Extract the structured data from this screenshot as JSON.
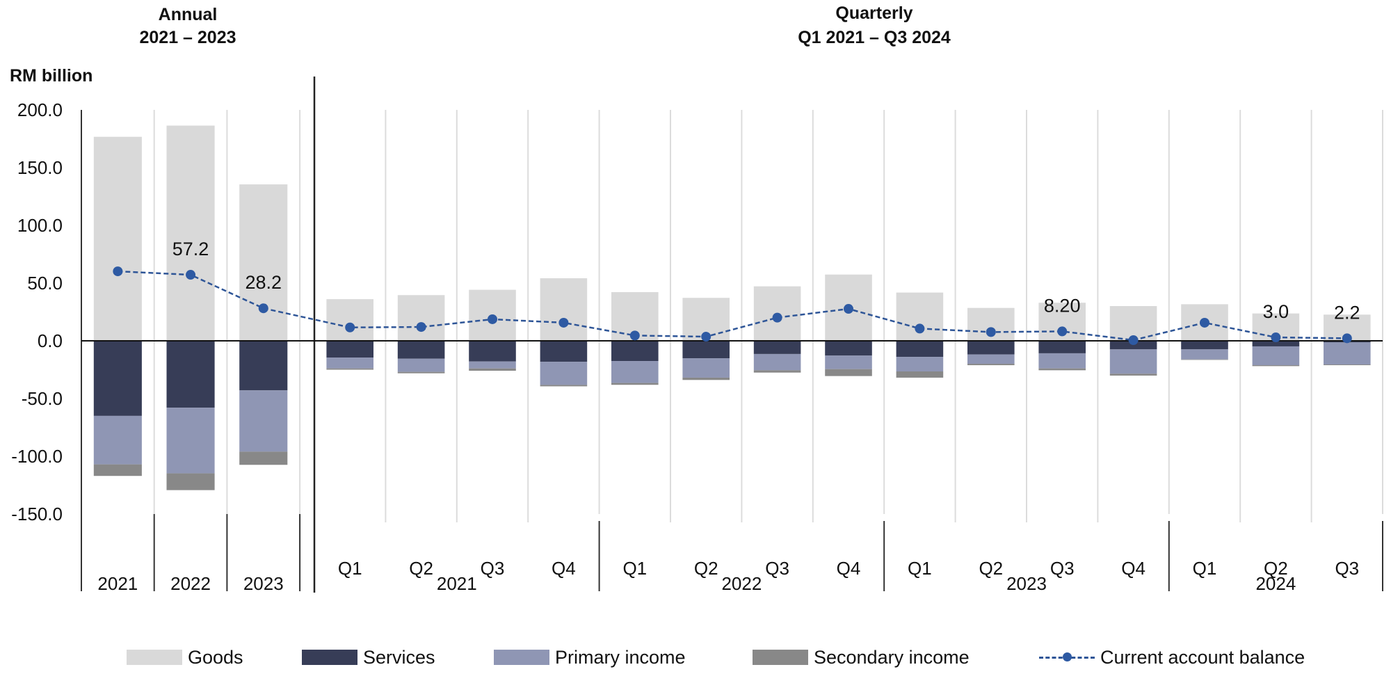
{
  "titles": {
    "annual": [
      "Annual",
      "2021 – 2023"
    ],
    "quarterly": [
      "Quarterly",
      "Q1 2021 – Q3 2024"
    ],
    "unit": "RM billion"
  },
  "colors": {
    "goods": "#d9d9d9",
    "services": "#373d57",
    "primary": "#8f96b4",
    "secondary": "#888888",
    "cab": "#2e5aa3"
  },
  "legend": [
    {
      "key": "goods",
      "label": "Goods"
    },
    {
      "key": "services",
      "label": "Services"
    },
    {
      "key": "primary",
      "label": "Primary income"
    },
    {
      "key": "secondary",
      "label": "Secondary income"
    },
    {
      "key": "cab",
      "label": "Current account balance"
    }
  ],
  "chart_data": {
    "type": "bar",
    "stacked": true,
    "title": "Annual 2021 – 2023 | Quarterly Q1 2021 – Q3 2024",
    "ylabel": "RM billion",
    "ylim": [
      -150,
      200
    ],
    "yticks": [
      "200.0",
      "150.0",
      "100.0",
      "50.0",
      "0.0",
      "-50.0",
      "-100.0",
      "-150.0"
    ],
    "ytick_values": [
      200,
      150,
      100,
      50,
      0,
      -50,
      -100,
      -150
    ],
    "grid": "vertical category separators",
    "legend_position": "bottom",
    "groups": [
      {
        "name": "Annual",
        "periods": [
          {
            "label": "2021",
            "year": ""
          },
          {
            "label": "2022",
            "year": ""
          },
          {
            "label": "2023",
            "year": ""
          }
        ]
      },
      {
        "name": "Quarterly",
        "years": [
          "2021",
          "2022",
          "2023",
          "2024"
        ],
        "periods": [
          {
            "label": "Q1",
            "year": "2021"
          },
          {
            "label": "Q2",
            "year": "2021"
          },
          {
            "label": "Q3",
            "year": "2021"
          },
          {
            "label": "Q4",
            "year": "2021"
          },
          {
            "label": "Q1",
            "year": "2022"
          },
          {
            "label": "Q2",
            "year": "2022"
          },
          {
            "label": "Q3",
            "year": "2022"
          },
          {
            "label": "Q4",
            "year": "2022"
          },
          {
            "label": "Q1",
            "year": "2023"
          },
          {
            "label": "Q2",
            "year": "2023"
          },
          {
            "label": "Q3",
            "year": "2023"
          },
          {
            "label": "Q4",
            "year": "2023"
          },
          {
            "label": "Q1",
            "year": "2024"
          },
          {
            "label": "Q2",
            "year": "2024"
          },
          {
            "label": "Q3",
            "year": "2024"
          }
        ]
      }
    ],
    "series": [
      {
        "name": "Goods",
        "key": "goods",
        "type": "bar",
        "values": [
          176.7,
          186.4,
          135.5,
          36.1,
          39.6,
          44.2,
          54.2,
          42.2,
          37.2,
          47.2,
          57.4,
          41.8,
          28.5,
          33.0,
          30.1,
          31.7,
          23.7,
          22.7
        ]
      },
      {
        "name": "Services",
        "key": "services",
        "type": "bar",
        "values": [
          -65.0,
          -57.9,
          -42.9,
          -14.5,
          -15.5,
          -17.9,
          -18.1,
          -17.5,
          -15.1,
          -11.4,
          -12.8,
          -13.9,
          -11.8,
          -10.8,
          -7.4,
          -7.4,
          -4.8,
          -1.4
        ]
      },
      {
        "name": "Primary income",
        "key": "primary",
        "type": "bar",
        "values": [
          -42.0,
          -56.9,
          -53.1,
          -9.4,
          -11.4,
          -6.0,
          -20.1,
          -19.0,
          -16.8,
          -14.1,
          -11.7,
          -12.6,
          -8.1,
          -13.1,
          -21.1,
          -8.7,
          -16.3,
          -19.1
        ]
      },
      {
        "name": "Secondary income",
        "key": "secondary",
        "type": "bar",
        "values": [
          -10.0,
          -14.5,
          -11.4,
          -1.1,
          -1.2,
          -2.0,
          -1.2,
          -1.6,
          -2.0,
          -2.0,
          -6.0,
          -5.4,
          -1.2,
          -1.6,
          -1.6,
          -0.4,
          -0.8,
          -0.6
        ]
      },
      {
        "name": "Current account balance",
        "key": "cab",
        "type": "line",
        "values": [
          60.2,
          57.2,
          28.2,
          11.6,
          12.0,
          18.7,
          15.7,
          4.6,
          3.6,
          20.1,
          27.7,
          10.6,
          7.6,
          8.2,
          0.6,
          15.7,
          3.0,
          2.2
        ]
      }
    ],
    "data_labels": [
      {
        "index": 1,
        "text": "57.2"
      },
      {
        "index": 2,
        "text": "28.2"
      },
      {
        "index": 13,
        "text": "8.20"
      },
      {
        "index": 16,
        "text": "3.0"
      },
      {
        "index": 17,
        "text": "2.2"
      }
    ]
  }
}
